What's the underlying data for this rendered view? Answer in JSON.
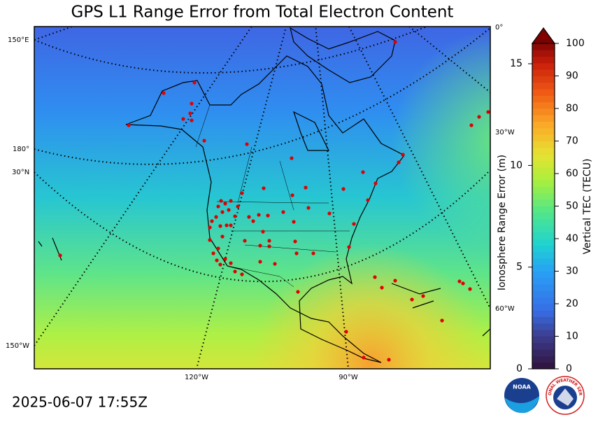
{
  "title": "GPS L1 Range Error from Total Electron Content",
  "timestamp": "2025-06-07 17:55Z",
  "map": {
    "graticule_labels": [
      "150°E",
      "180°",
      "30°N",
      "150°W",
      "0°",
      "30°W",
      "60°W",
      "120°W",
      "90°W"
    ]
  },
  "colorbar": {
    "label": "Vertical TEC (TECU)",
    "lim": [
      0,
      100
    ],
    "ticks": [
      0,
      10,
      20,
      30,
      40,
      50,
      60,
      70,
      80,
      90,
      100
    ],
    "secondary_label": "Ionosphere Range Error (m)",
    "secondary_lim": [
      0,
      16
    ],
    "secondary_ticks": [
      0,
      5,
      10,
      15
    ]
  },
  "logos": {
    "noaa": "NOAA",
    "nws": "NATIONAL WEATHER SERVICE"
  }
}
